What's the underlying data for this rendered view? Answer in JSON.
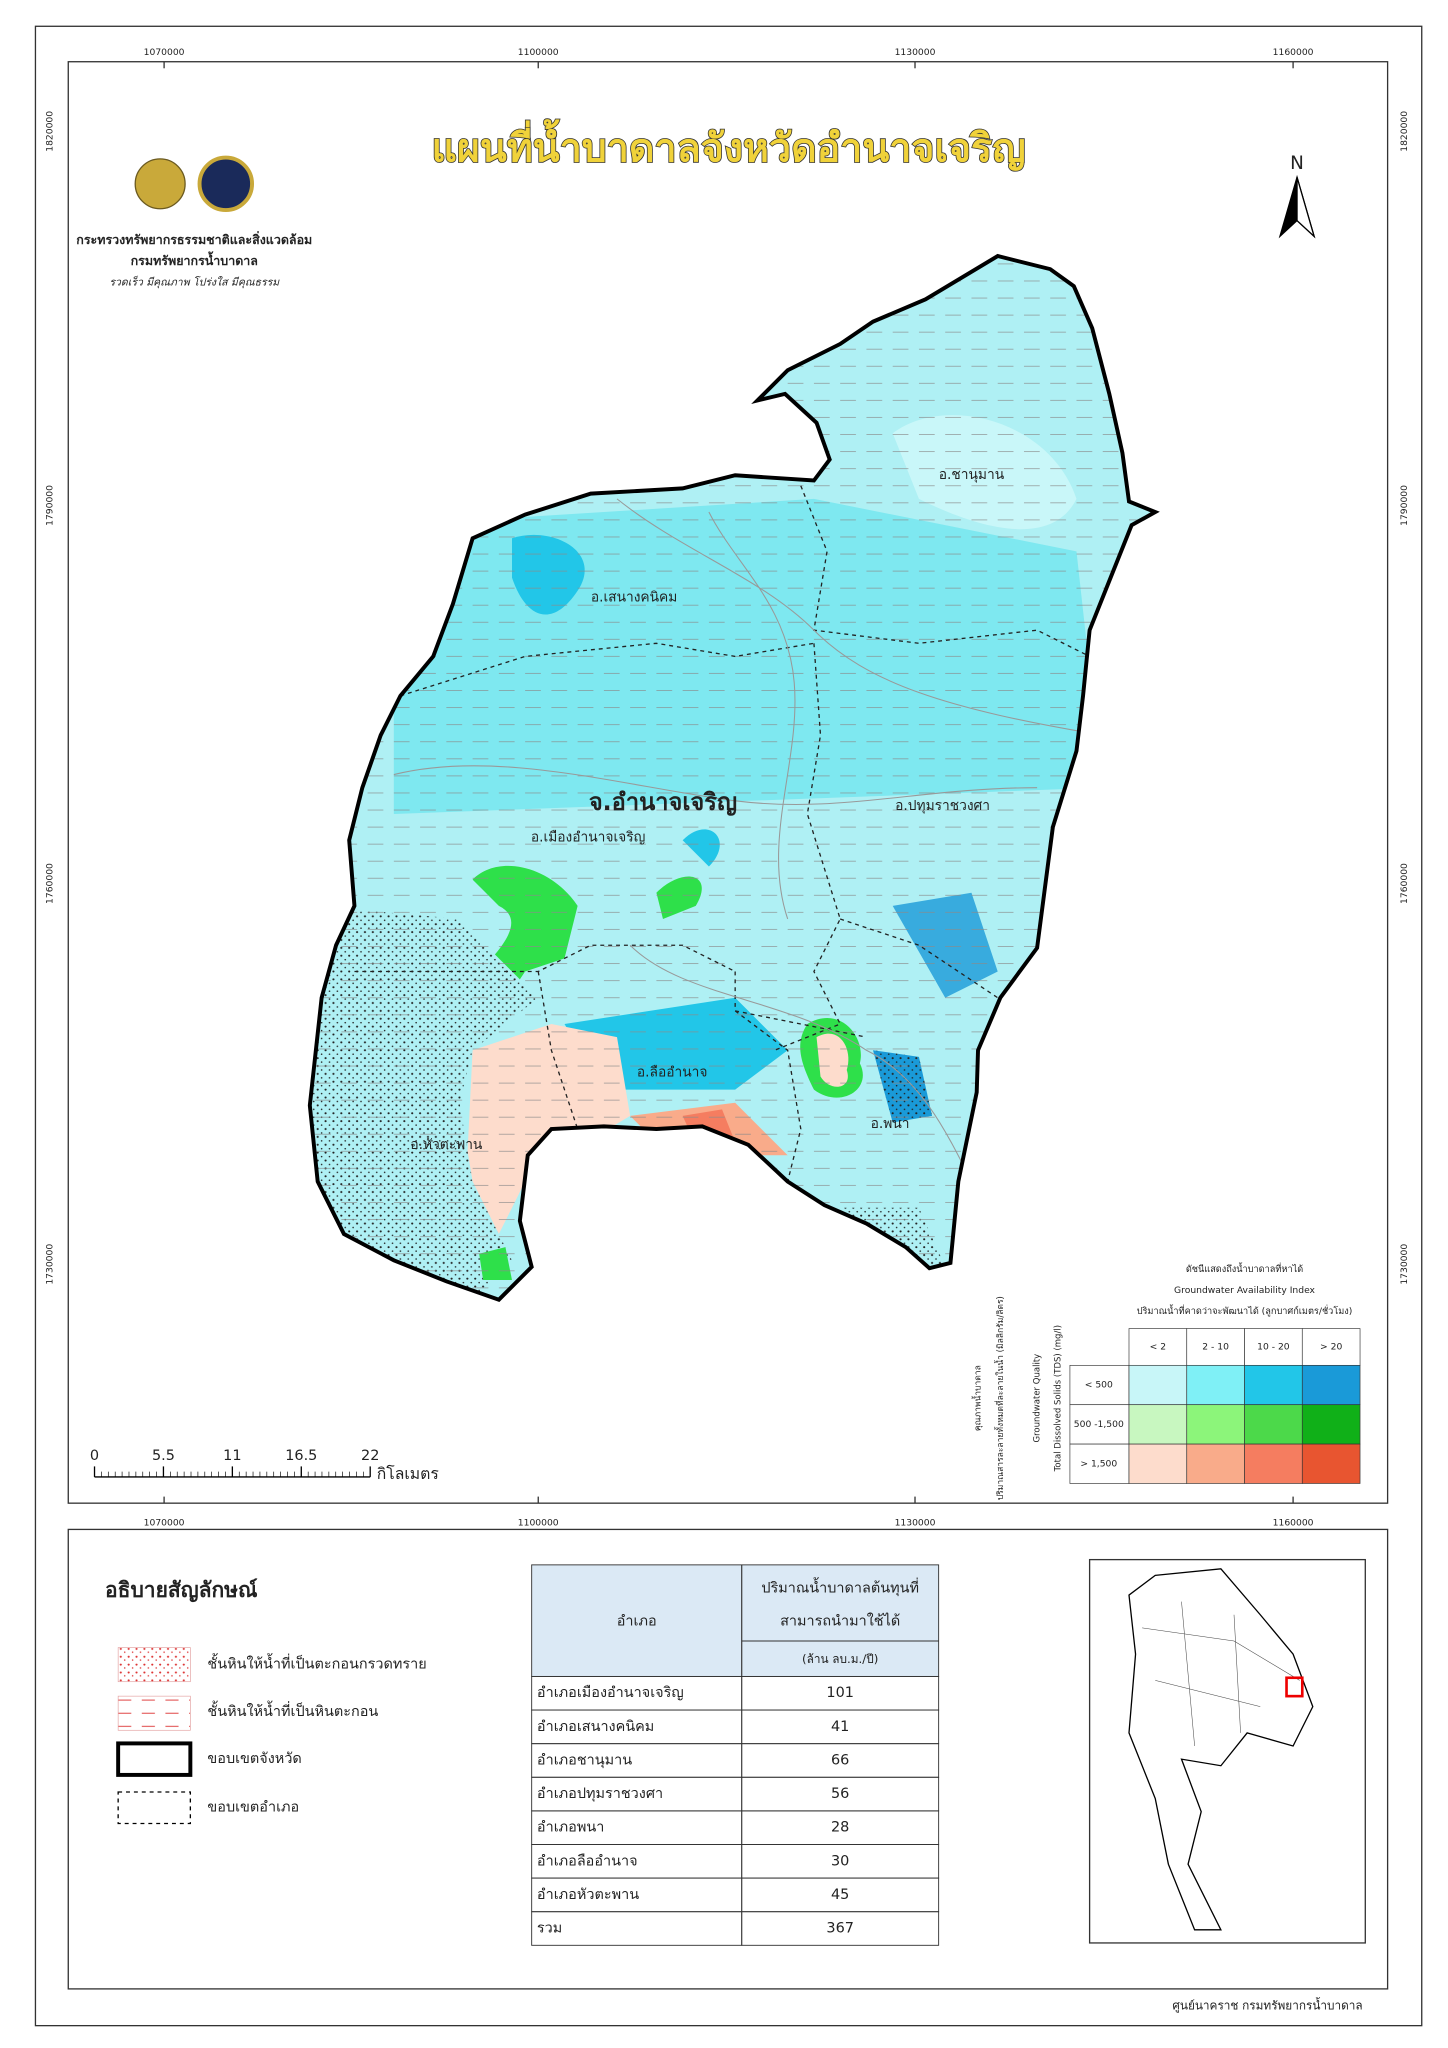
{
  "header": {
    "title": "แผนที่น้ำบาดาลจังหวัดอำนาจเจริญ",
    "ministry": "กระทรวงทรัพยากรธรรมชาติและสิ่งแวดล้อม",
    "department": "กรมทรัพยากรน้ำบาดาล",
    "motto": "รวดเร็ว มีคุณภาพ โปร่งใส มีคุณธรรม"
  },
  "map": {
    "north": "N",
    "x_coords": [
      "1070000",
      "1100000",
      "1130000",
      "1160000"
    ],
    "y_coords": [
      "1820000",
      "1790000",
      "1760000",
      "1730000"
    ],
    "province_label": "จ.อำนาจเจริญ",
    "district_labels": [
      "อ.ชานุมาน",
      "อ.เสนางคนิคม",
      "อ.ปทุมราชวงศา",
      "อ.เมืองอำนาจเจริญ",
      "อ.ลืออำนาจ",
      "อ.พนา",
      "อ.หัวตะพาน"
    ],
    "scale_bar": {
      "ticks": [
        "0",
        "5.5",
        "11",
        "16.5",
        "22"
      ],
      "unit": "กิโลเมตร"
    }
  },
  "index_legend": {
    "title_th": "ดัชนีแสดงถึงน้ำบาดาลที่หาได้",
    "title_en": "Groundwater Availability Index",
    "yield_label": "ปริมาณน้ำที่คาดว่าจะพัฒนาได้ (ลูกบาศก์เมตร/ชั่วโมง)",
    "quality_th": "คุณภาพน้ำบาดาล",
    "quality_desc_th": "ปริมาณสารละลายทั้งหมดที่ละลายในน้ำ (มิลลิกรัม/ลิตร)",
    "quality_en": "Groundwater Quality",
    "tds_en": "Total Dissolved Solids (TDS) (mg/l)",
    "columns": [
      "< 2",
      "2 - 10",
      "10 - 20",
      "> 20"
    ],
    "rows": [
      {
        "label": "< 500",
        "colors": [
          "#c8f6f8",
          "#7ff0f6",
          "#22c6e8",
          "#1a9ad8"
        ]
      },
      {
        "label": "500 -1,500",
        "colors": [
          "#c8f7c0",
          "#8cf57a",
          "#4cd94a",
          "#10b018"
        ]
      },
      {
        "label": "> 1,500",
        "colors": [
          "#fddccc",
          "#f9ab8a",
          "#f57d60",
          "#e85530"
        ]
      }
    ]
  },
  "legend": {
    "title": "อธิบายสัญลักษณ์",
    "items": [
      "ชั้นหินให้น้ำที่เป็นตะกอนกรวดทราย",
      "ชั้นหินให้น้ำที่เป็นหินตะกอน",
      "ขอบเขตจังหวัด",
      "ขอบเขตอำเภอ"
    ]
  },
  "table": {
    "header": {
      "district": "อำเภอ",
      "volume": [
        "ปริมาณน้ำบาดาลต้นทุนที่",
        "สามารถนำมาใช้ได้"
      ],
      "unit": "(ล้าน ลบ.ม./ปี)"
    },
    "rows": [
      [
        "อำเภอเมืองอำนาจเจริญ",
        101
      ],
      [
        "อำเภอเสนางคนิคม",
        41
      ],
      [
        "อำเภอชานุมาน",
        66
      ],
      [
        "อำเภอปทุมราชวงศา",
        56
      ],
      [
        "อำเภอพนา",
        28
      ],
      [
        "อำเภอลืออำนาจ",
        30
      ],
      [
        "อำเภอหัวตะพาน",
        45
      ],
      [
        "รวม",
        367
      ]
    ]
  },
  "footer": "ศูนย์นาคราช กรมทรัพยากรน้ำบาดาล"
}
